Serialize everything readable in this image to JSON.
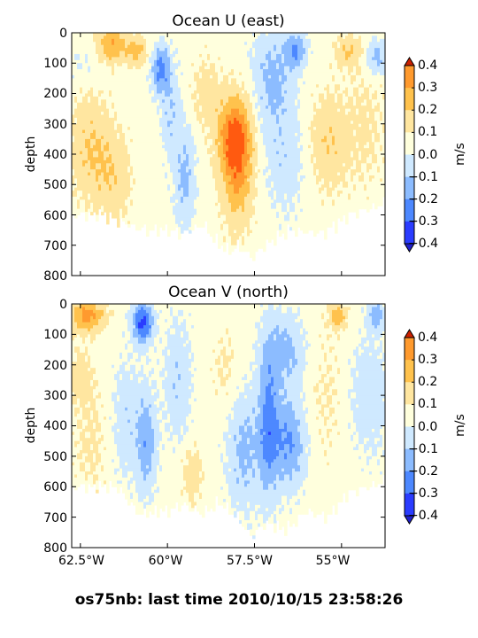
{
  "suptitle": "os75nb: last time 2010/10/15 23:58:26",
  "colors": {
    "levels": [
      "#2a3cff",
      "#4d88ff",
      "#8cbcff",
      "#cfe9ff",
      "#ffffdd",
      "#ffe6a0",
      "#ffc24d",
      "#ff9a2e",
      "#ff5a10"
    ],
    "under": "#2020cc",
    "over": "#cc2000",
    "background": "#ffffff"
  },
  "chart_data": [
    {
      "type": "heatmap",
      "title": "Ocean U (east)",
      "ylabel": "depth",
      "xlabel": "",
      "x_ticks": [
        "62.5°W",
        "60°W",
        "57.5°W",
        "55°W"
      ],
      "x_tick_values": [
        -62.5,
        -60,
        -57.5,
        -55
      ],
      "xlim": [
        -62.75,
        -53.75
      ],
      "y_ticks": [
        "0",
        "100",
        "200",
        "300",
        "400",
        "500",
        "600",
        "700",
        "800"
      ],
      "y_tick_values": [
        0,
        100,
        200,
        300,
        400,
        500,
        600,
        700,
        800
      ],
      "ylim": [
        800,
        0
      ],
      "show_x_tick_labels": false,
      "colorbar": {
        "label": "m/s",
        "ticks": [
          "0.4",
          "0.3",
          "0.2",
          "0.1",
          "0.0",
          "−0.1",
          "−0.2",
          "−0.3",
          "−0.4"
        ],
        "tick_values": [
          0.4,
          0.3,
          0.2,
          0.1,
          0.0,
          -0.1,
          -0.2,
          -0.3,
          -0.4
        ],
        "range": [
          -0.4,
          0.4
        ],
        "extend": "both"
      },
      "max_depth_profile": {
        "lon": [
          -62.7,
          -62.3,
          -61.8,
          -61.4,
          -60.6,
          -60.0,
          -59.5,
          -59.0,
          -58.5,
          -58.2,
          -58.0,
          -57.6,
          -57.2,
          -56.5,
          -55.5,
          -54.8,
          -54.2,
          -53.8
        ],
        "depth": [
          600,
          600,
          600,
          620,
          650,
          650,
          660,
          630,
          700,
          720,
          700,
          740,
          700,
          650,
          660,
          600,
          580,
          560
        ]
      },
      "features": [
        {
          "lon": -62.2,
          "depth": 380,
          "value": 0.15,
          "spread_lon": 0.6,
          "spread_depth": 180
        },
        {
          "lon": -61.5,
          "depth": 480,
          "value": 0.12,
          "spread_lon": 0.5,
          "spread_depth": 140
        },
        {
          "lon": -62.4,
          "depth": 110,
          "value": -0.06,
          "spread_lon": 0.6,
          "spread_depth": 60
        },
        {
          "lon": -61.6,
          "depth": 40,
          "value": 0.25,
          "spread_lon": 0.4,
          "spread_depth": 60
        },
        {
          "lon": -60.9,
          "depth": 60,
          "value": 0.2,
          "spread_lon": 0.3,
          "spread_depth": 50
        },
        {
          "lon": -60.2,
          "depth": 120,
          "value": -0.28,
          "spread_lon": 0.25,
          "spread_depth": 80
        },
        {
          "lon": -59.9,
          "depth": 260,
          "value": -0.14,
          "spread_lon": 0.3,
          "spread_depth": 160
        },
        {
          "lon": -59.5,
          "depth": 480,
          "value": -0.18,
          "spread_lon": 0.3,
          "spread_depth": 160
        },
        {
          "lon": -58.9,
          "depth": 200,
          "value": 0.1,
          "spread_lon": 0.4,
          "spread_depth": 120
        },
        {
          "lon": -58.0,
          "depth": 430,
          "value": 0.3,
          "spread_lon": 0.45,
          "spread_depth": 190
        },
        {
          "lon": -58.1,
          "depth": 330,
          "value": 0.22,
          "spread_lon": 0.5,
          "spread_depth": 120
        },
        {
          "lon": -57.0,
          "depth": 150,
          "value": -0.18,
          "spread_lon": 0.6,
          "spread_depth": 170
        },
        {
          "lon": -56.6,
          "depth": 420,
          "value": -0.12,
          "spread_lon": 0.6,
          "spread_depth": 180
        },
        {
          "lon": -56.3,
          "depth": 60,
          "value": -0.24,
          "spread_lon": 0.3,
          "spread_depth": 60
        },
        {
          "lon": -55.4,
          "depth": 360,
          "value": 0.14,
          "spread_lon": 0.6,
          "spread_depth": 160
        },
        {
          "lon": -54.3,
          "depth": 300,
          "value": 0.07,
          "spread_lon": 0.6,
          "spread_depth": 220
        },
        {
          "lon": -54.8,
          "depth": 60,
          "value": 0.15,
          "spread_lon": 0.35,
          "spread_depth": 50
        },
        {
          "lon": -54.0,
          "depth": 80,
          "value": -0.2,
          "spread_lon": 0.3,
          "spread_depth": 60
        }
      ]
    },
    {
      "type": "heatmap",
      "title": "Ocean V (north)",
      "ylabel": "depth",
      "xlabel": "",
      "x_ticks": [
        "62.5°W",
        "60°W",
        "57.5°W",
        "55°W"
      ],
      "x_tick_values": [
        -62.5,
        -60,
        -57.5,
        -55
      ],
      "xlim": [
        -62.75,
        -53.75
      ],
      "y_ticks": [
        "0",
        "100",
        "200",
        "300",
        "400",
        "500",
        "600",
        "700",
        "800"
      ],
      "y_tick_values": [
        0,
        100,
        200,
        300,
        400,
        500,
        600,
        700,
        800
      ],
      "ylim": [
        800,
        0
      ],
      "show_x_tick_labels": true,
      "colorbar": {
        "label": "m/s",
        "ticks": [
          "0.4",
          "0.3",
          "0.2",
          "0.1",
          "0.0",
          "−0.1",
          "−0.2",
          "−0.3",
          "−0.4"
        ],
        "tick_values": [
          0.4,
          0.3,
          0.2,
          0.1,
          0.0,
          -0.1,
          -0.2,
          -0.3,
          -0.4
        ],
        "range": [
          -0.4,
          0.4
        ],
        "extend": "both"
      },
      "max_depth_profile": {
        "lon": [
          -62.7,
          -62.3,
          -61.8,
          -61.4,
          -60.8,
          -60.2,
          -59.5,
          -59.0,
          -58.5,
          -58.0,
          -57.6,
          -57.2,
          -56.6,
          -56.0,
          -55.4,
          -54.8,
          -54.2,
          -53.8
        ],
        "depth": [
          600,
          600,
          600,
          600,
          690,
          680,
          660,
          690,
          650,
          700,
          760,
          720,
          740,
          680,
          700,
          620,
          600,
          580
        ]
      },
      "features": [
        {
          "lon": -62.3,
          "depth": 40,
          "value": 0.3,
          "spread_lon": 0.5,
          "spread_depth": 50
        },
        {
          "lon": -62.5,
          "depth": 240,
          "value": 0.12,
          "spread_lon": 0.3,
          "spread_depth": 80
        },
        {
          "lon": -62.2,
          "depth": 450,
          "value": 0.07,
          "spread_lon": 0.5,
          "spread_depth": 200
        },
        {
          "lon": -60.7,
          "depth": 60,
          "value": -0.38,
          "spread_lon": 0.3,
          "spread_depth": 70
        },
        {
          "lon": -60.6,
          "depth": 450,
          "value": -0.22,
          "spread_lon": 0.3,
          "spread_depth": 170
        },
        {
          "lon": -61.2,
          "depth": 380,
          "value": -0.12,
          "spread_lon": 0.4,
          "spread_depth": 200
        },
        {
          "lon": -59.7,
          "depth": 250,
          "value": -0.14,
          "spread_lon": 0.4,
          "spread_depth": 200
        },
        {
          "lon": -59.3,
          "depth": 560,
          "value": 0.12,
          "spread_lon": 0.3,
          "spread_depth": 100
        },
        {
          "lon": -58.3,
          "depth": 220,
          "value": 0.07,
          "spread_lon": 0.4,
          "spread_depth": 150
        },
        {
          "lon": -57.8,
          "depth": 480,
          "value": -0.18,
          "spread_lon": 0.5,
          "spread_depth": 200
        },
        {
          "lon": -57.1,
          "depth": 380,
          "value": -0.25,
          "spread_lon": 0.3,
          "spread_depth": 250
        },
        {
          "lon": -56.5,
          "depth": 450,
          "value": -0.26,
          "spread_lon": 0.5,
          "spread_depth": 150
        },
        {
          "lon": -56.6,
          "depth": 150,
          "value": -0.18,
          "spread_lon": 0.6,
          "spread_depth": 120
        },
        {
          "lon": -55.5,
          "depth": 300,
          "value": 0.06,
          "spread_lon": 0.6,
          "spread_depth": 250
        },
        {
          "lon": -55.1,
          "depth": 40,
          "value": 0.22,
          "spread_lon": 0.25,
          "spread_depth": 40
        },
        {
          "lon": -54.2,
          "depth": 300,
          "value": -0.12,
          "spread_lon": 0.6,
          "spread_depth": 200
        },
        {
          "lon": -54.0,
          "depth": 40,
          "value": -0.2,
          "spread_lon": 0.25,
          "spread_depth": 50
        }
      ]
    }
  ]
}
